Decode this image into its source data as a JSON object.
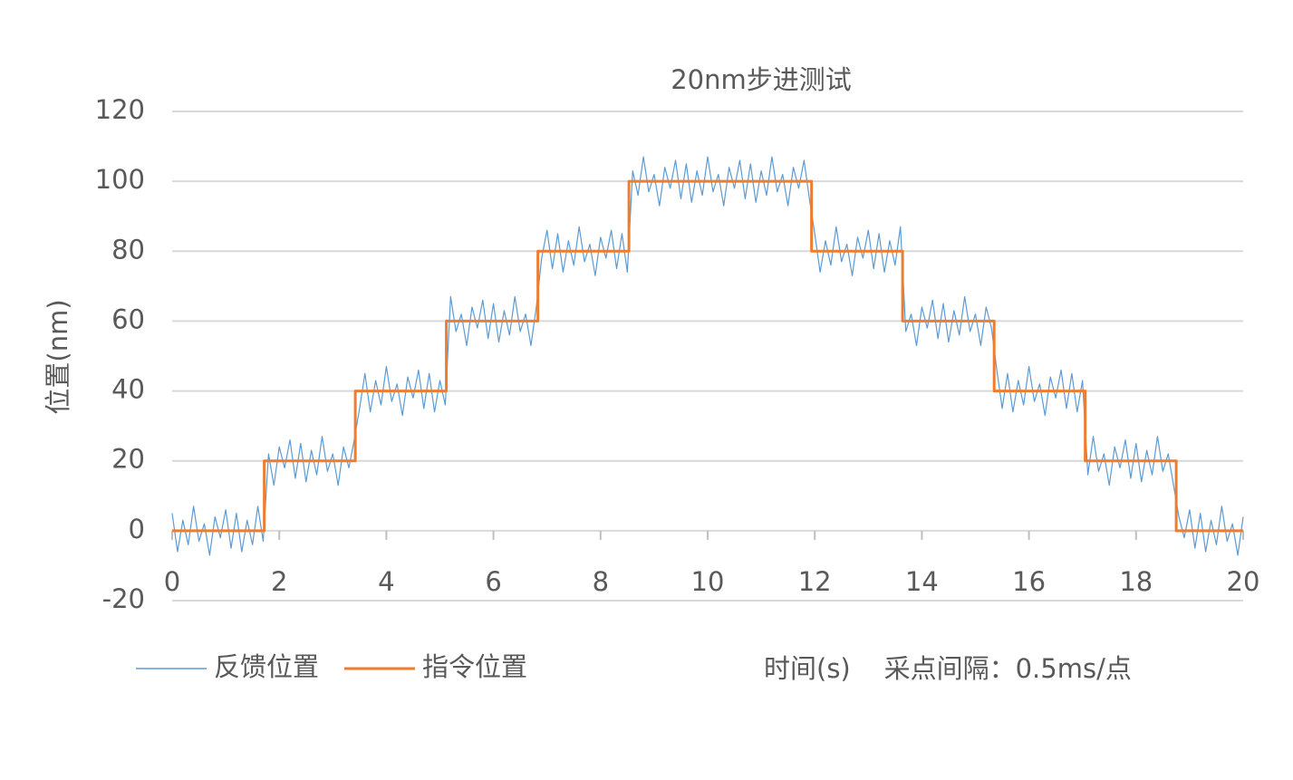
{
  "chart_data": {
    "type": "line",
    "title": "20nm步进测试",
    "y_label": "位置(nm)",
    "x_label": "时间(s)    采点间隔：0.5ms/点",
    "xlim": [
      0,
      20
    ],
    "xticks": [
      0,
      2,
      4,
      6,
      8,
      10,
      12,
      14,
      16,
      18,
      20
    ],
    "ylim": [
      -20,
      120
    ],
    "yticks": [
      -20,
      0,
      20,
      40,
      60,
      80,
      100,
      120
    ],
    "grid": true,
    "legend": "bottom-left",
    "series": [
      {
        "name": "反馈位置",
        "color": "#5b9bd5",
        "x": [
          0,
          0.1,
          0.2,
          0.3,
          0.4,
          0.5,
          0.6,
          0.7,
          0.8,
          0.9,
          1,
          1.1,
          1.2,
          1.3,
          1.4,
          1.5,
          1.6,
          1.7,
          1.8,
          1.9,
          2,
          2.1,
          2.2,
          2.3,
          2.4,
          2.5,
          2.6,
          2.7,
          2.8,
          2.9,
          3,
          3.1,
          3.2,
          3.3,
          3.4,
          3.5,
          3.6,
          3.7,
          3.8,
          3.9,
          4,
          4.1,
          4.2,
          4.3,
          4.4,
          4.5,
          4.6,
          4.7,
          4.8,
          4.9,
          5,
          5.1,
          5.2,
          5.3,
          5.4,
          5.5,
          5.6,
          5.7,
          5.8,
          5.9,
          6,
          6.1,
          6.2,
          6.3,
          6.4,
          6.5,
          6.6,
          6.7,
          6.8,
          6.9,
          7,
          7.1,
          7.2,
          7.3,
          7.4,
          7.5,
          7.6,
          7.7,
          7.8,
          7.9,
          8,
          8.1,
          8.2,
          8.3,
          8.4,
          8.5,
          8.6,
          8.7,
          8.8,
          8.9,
          9,
          9.1,
          9.2,
          9.3,
          9.4,
          9.5,
          9.6,
          9.7,
          9.8,
          9.9,
          10,
          10.1,
          10.2,
          10.3,
          10.4,
          10.5,
          10.6,
          10.7,
          10.8,
          10.9,
          11,
          11.1,
          11.2,
          11.3,
          11.4,
          11.5,
          11.6,
          11.7,
          11.8,
          11.9,
          12,
          12.1,
          12.2,
          12.3,
          12.4,
          12.5,
          12.6,
          12.7,
          12.8,
          12.9,
          13,
          13.1,
          13.2,
          13.3,
          13.4,
          13.5,
          13.6,
          13.7,
          13.8,
          13.9,
          14,
          14.1,
          14.2,
          14.3,
          14.4,
          14.5,
          14.6,
          14.7,
          14.8,
          14.9,
          15,
          15.1,
          15.2,
          15.3,
          15.4,
          15.5,
          15.6,
          15.7,
          15.8,
          15.9,
          16,
          16.1,
          16.2,
          16.3,
          16.4,
          16.5,
          16.6,
          16.7,
          16.8,
          16.9,
          17,
          17.1,
          17.2,
          17.3,
          17.4,
          17.5,
          17.6,
          17.7,
          17.8,
          17.9,
          18,
          18.1,
          18.2,
          18.3,
          18.4,
          18.5,
          18.6,
          18.7,
          18.8,
          18.9,
          19,
          19.1,
          19.2,
          19.3,
          19.4,
          19.5,
          19.6,
          19.7,
          19.8,
          19.9,
          20
        ],
        "values": [
          5,
          -6,
          3,
          -4,
          7,
          -3,
          2,
          -7,
          4,
          -2,
          6,
          -5,
          5,
          -6,
          3,
          -4,
          7,
          -3,
          22,
          13,
          24,
          18,
          26,
          15,
          25,
          14,
          23,
          16,
          27,
          17,
          22,
          13,
          24,
          18,
          26,
          35,
          45,
          34,
          43,
          36,
          47,
          37,
          42,
          33,
          44,
          38,
          46,
          35,
          45,
          34,
          43,
          36,
          67,
          57,
          62,
          53,
          64,
          58,
          66,
          55,
          65,
          54,
          63,
          56,
          67,
          57,
          62,
          53,
          64,
          78,
          86,
          75,
          85,
          74,
          83,
          76,
          87,
          77,
          82,
          73,
          84,
          78,
          86,
          75,
          85,
          74,
          103,
          96,
          107,
          97,
          102,
          93,
          104,
          98,
          106,
          95,
          105,
          94,
          103,
          96,
          107,
          97,
          102,
          93,
          104,
          98,
          106,
          95,
          105,
          94,
          103,
          96,
          107,
          97,
          102,
          93,
          104,
          98,
          106,
          95,
          85,
          74,
          83,
          76,
          87,
          77,
          82,
          73,
          84,
          78,
          86,
          75,
          85,
          74,
          83,
          76,
          87,
          57,
          62,
          53,
          64,
          58,
          66,
          55,
          65,
          54,
          63,
          56,
          67,
          57,
          62,
          53,
          64,
          58,
          46,
          35,
          45,
          34,
          43,
          36,
          47,
          37,
          42,
          33,
          44,
          38,
          46,
          35,
          45,
          34,
          43,
          16,
          27,
          17,
          22,
          13,
          24,
          18,
          26,
          15,
          25,
          14,
          23,
          16,
          27,
          17,
          22,
          13,
          4,
          -2,
          6,
          -5,
          5,
          -6,
          3,
          -4,
          7,
          -3,
          2,
          -7,
          4
        ]
      },
      {
        "name": "指令位置",
        "color": "#ed7d31",
        "x": [
          0,
          1.72,
          1.72,
          3.42,
          3.42,
          5.12,
          5.12,
          6.83,
          6.83,
          8.53,
          8.53,
          11.94,
          11.94,
          13.64,
          13.64,
          15.35,
          15.35,
          17.05,
          17.05,
          18.75,
          18.75,
          20
        ],
        "values": [
          0,
          0,
          20,
          20,
          40,
          40,
          60,
          60,
          80,
          80,
          100,
          100,
          80,
          80,
          60,
          60,
          40,
          40,
          20,
          20,
          0,
          0
        ]
      }
    ]
  }
}
